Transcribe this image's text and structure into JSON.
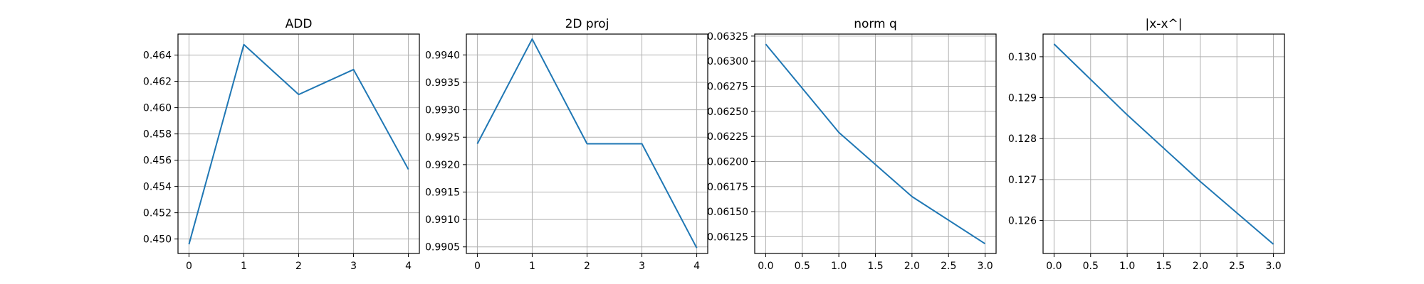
{
  "colors": {
    "series": "#1f77b4"
  },
  "chart_data": [
    {
      "type": "line",
      "title": "ADD",
      "xlabel": "",
      "ylabel": "",
      "x": [
        0,
        1,
        2,
        3,
        4
      ],
      "series": [
        {
          "values": [
            0.4496,
            0.4648,
            0.461,
            0.4629,
            0.4553
          ]
        }
      ],
      "xlim": [
        -0.2,
        4.2
      ],
      "ylim": [
        0.4489,
        0.4656
      ],
      "xticks": [
        "0",
        "1",
        "2",
        "3",
        "4"
      ],
      "yticks": [
        "0.450",
        "0.452",
        "0.454",
        "0.456",
        "0.458",
        "0.460",
        "0.462",
        "0.464"
      ],
      "xtick_values": [
        0,
        1,
        2,
        3,
        4
      ],
      "ytick_values": [
        0.45,
        0.452,
        0.454,
        0.456,
        0.458,
        0.46,
        0.462,
        0.464
      ],
      "grid": true
    },
    {
      "type": "line",
      "title": "2D proj",
      "xlabel": "",
      "ylabel": "",
      "x": [
        0,
        1,
        2,
        3,
        4
      ],
      "series": [
        {
          "values": [
            0.99238,
            0.99429,
            0.99238,
            0.99238,
            0.99048
          ]
        }
      ],
      "xlim": [
        -0.2,
        4.2
      ],
      "ylim": [
        0.99038,
        0.99438
      ],
      "xticks": [
        "0",
        "1",
        "2",
        "3",
        "4"
      ],
      "yticks": [
        "0.9905",
        "0.9910",
        "0.9915",
        "0.9920",
        "0.9925",
        "0.9930",
        "0.9935",
        "0.9940"
      ],
      "xtick_values": [
        0,
        1,
        2,
        3,
        4
      ],
      "ytick_values": [
        0.9905,
        0.991,
        0.9915,
        0.992,
        0.9925,
        0.993,
        0.9935,
        0.994
      ],
      "grid": true
    },
    {
      "type": "line",
      "title": "norm q",
      "xlabel": "",
      "ylabel": "",
      "x": [
        0,
        1,
        2,
        3
      ],
      "series": [
        {
          "values": [
            0.06317,
            0.06229,
            0.06165,
            0.06118
          ]
        }
      ],
      "xlim": [
        -0.15,
        3.15
      ],
      "ylim": [
        0.061083,
        0.06327
      ],
      "xticks": [
        "0.0",
        "0.5",
        "1.0",
        "1.5",
        "2.0",
        "2.5",
        "3.0"
      ],
      "yticks": [
        "0.06125",
        "0.06150",
        "0.06175",
        "0.06200",
        "0.06225",
        "0.06250",
        "0.06275",
        "0.06300",
        "0.06325"
      ],
      "xtick_values": [
        0,
        0.5,
        1,
        1.5,
        2,
        2.5,
        3
      ],
      "ytick_values": [
        0.06125,
        0.0615,
        0.06175,
        0.062,
        0.06225,
        0.0625,
        0.06275,
        0.063,
        0.06325
      ],
      "grid": true
    },
    {
      "type": "line",
      "title": "|x-x^|",
      "xlabel": "",
      "ylabel": "",
      "x": [
        0,
        1,
        2,
        3
      ],
      "series": [
        {
          "values": [
            0.13031,
            0.12858,
            0.12695,
            0.12542
          ]
        }
      ],
      "xlim": [
        -0.15,
        3.15
      ],
      "ylim": [
        0.125195,
        0.130553
      ],
      "xticks": [
        "0.0",
        "0.5",
        "1.0",
        "1.5",
        "2.0",
        "2.5",
        "3.0"
      ],
      "yticks": [
        "0.126",
        "0.127",
        "0.128",
        "0.129",
        "0.130"
      ],
      "xtick_values": [
        0,
        0.5,
        1,
        1.5,
        2,
        2.5,
        3
      ],
      "ytick_values": [
        0.126,
        0.127,
        0.128,
        0.129,
        0.13
      ],
      "grid": true
    }
  ]
}
